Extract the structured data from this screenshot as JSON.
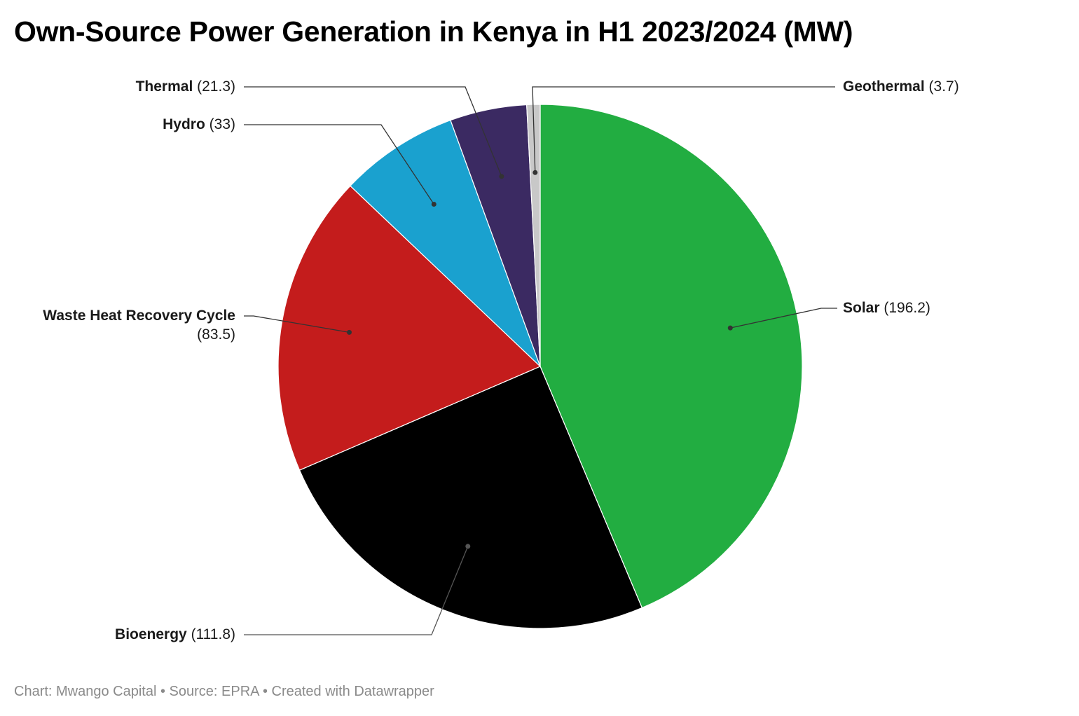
{
  "chart_data": {
    "type": "pie",
    "title": "Own-Source Power Generation in Kenya in H1 2023/2024 (MW)",
    "slices": [
      {
        "name": "Solar",
        "value": 196.2,
        "value_label": "(196.2)",
        "color": "#22ad41"
      },
      {
        "name": "Bioenergy",
        "value": 111.8,
        "value_label": "(111.8)",
        "color": "#000000"
      },
      {
        "name": "Waste Heat Recovery Cycle",
        "value": 83.5,
        "value_label": "(83.5)",
        "color": "#c41c1c"
      },
      {
        "name": "Hydro",
        "value": 33,
        "value_label": "(33)",
        "color": "#1aa1cf"
      },
      {
        "name": "Thermal",
        "value": 21.3,
        "value_label": "(21.3)",
        "color": "#3b2a62"
      },
      {
        "name": "Geothermal",
        "value": 3.7,
        "value_label": "(3.7)",
        "color": "#c8c8c8"
      }
    ]
  },
  "footer": {
    "credit": "Chart: Mwango Capital • Source: EPRA • Created with Datawrapper"
  }
}
